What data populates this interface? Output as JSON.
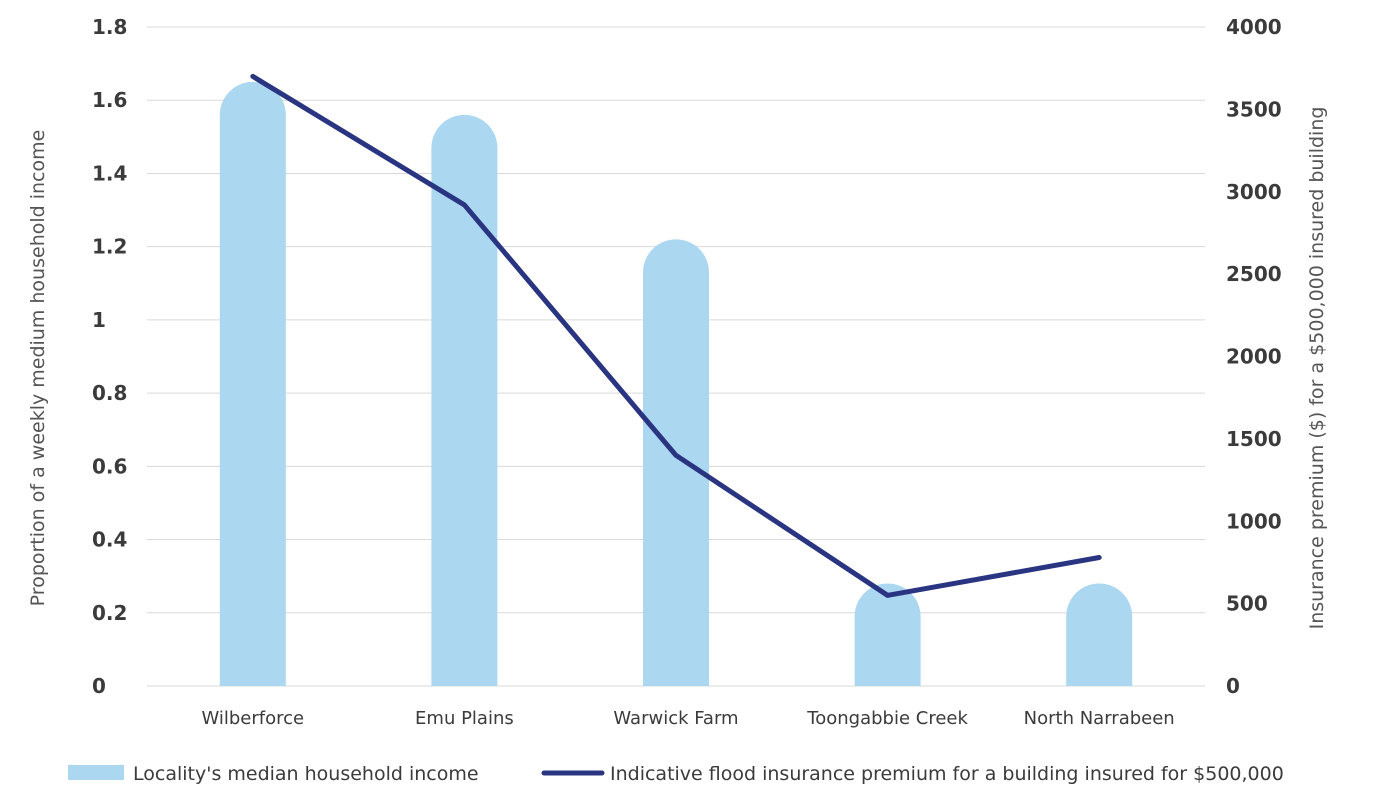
{
  "chart_data": {
    "type": "bar",
    "categories": [
      "Wilberforce",
      "Emu Plains",
      "Warwick Farm",
      "Toongabbie Creek",
      "North Narrabeen"
    ],
    "series": [
      {
        "name": "Locality's median household income",
        "type": "bar",
        "axis": "left",
        "values": [
          1.65,
          1.56,
          1.22,
          0.28,
          0.28
        ],
        "color": "#acd7f1"
      },
      {
        "name": "Indicative flood insurance premium for a building insured for $500,000",
        "type": "line",
        "axis": "right",
        "values": [
          3700,
          2920,
          1400,
          550,
          780
        ],
        "color": "#2a3582"
      }
    ],
    "ylabel": "Proportion of a weekly medium household income",
    "y2label": "Insurance premium ($) for a $500,000 insured building",
    "ylim": [
      0,
      1.8
    ],
    "y2lim": [
      0,
      4000
    ],
    "yticks": [
      "0",
      "0.2",
      "0.4",
      "0.6",
      "0.8",
      "1",
      "1.2",
      "1.4",
      "1.6",
      "1.8"
    ],
    "y2ticks": [
      "0",
      "500",
      "1000",
      "1500",
      "2000",
      "2500",
      "3000",
      "3500",
      "4000"
    ],
    "grid": true,
    "legend_position": "bottom"
  }
}
